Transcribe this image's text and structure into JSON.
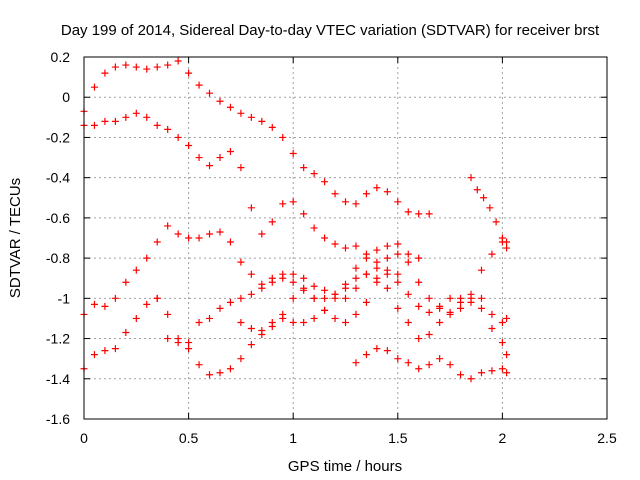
{
  "chart_data": {
    "type": "scatter",
    "title": "Day 199 of 2014, Sidereal Day-to-day VTEC variation (SDTVAR) for receiver brst",
    "xlabel": "GPS time / hours",
    "ylabel": "SDTVAR / TECUs",
    "xlim": [
      0,
      2.5
    ],
    "ylim": [
      -1.6,
      0.2
    ],
    "xticks": [
      0,
      0.5,
      1,
      1.5,
      2,
      2.5
    ],
    "xtick_labels": [
      "0",
      "0.5",
      "1",
      "1.5",
      "2",
      "2.5"
    ],
    "yticks": [
      -1.6,
      -1.4,
      -1.2,
      -1,
      -0.8,
      -0.6,
      -0.4,
      -0.2,
      0,
      0.2
    ],
    "ytick_labels": [
      "-1.6",
      "-1.4",
      "-1.2",
      "-1",
      "-0.8",
      "-0.6",
      "-0.4",
      "-0.2",
      "0",
      "0.2"
    ],
    "grid": true,
    "marker": "+",
    "color": "#ff0000",
    "series": [
      {
        "x": [
          0.0,
          0.05,
          0.1,
          0.15,
          0.2,
          0.25,
          0.3,
          0.35,
          0.4,
          0.45,
          0.5,
          0.55,
          0.6,
          0.65,
          0.7,
          0.75,
          0.8,
          0.85,
          0.9,
          0.95,
          1.0,
          1.05,
          1.1,
          1.15,
          1.2,
          1.25,
          1.3,
          1.35,
          1.4,
          1.45,
          1.5,
          1.55,
          1.6,
          1.65
        ],
        "y": [
          -0.07,
          0.05,
          0.12,
          0.15,
          0.16,
          0.15,
          0.14,
          0.15,
          0.16,
          0.18,
          0.12,
          0.06,
          0.02,
          -0.02,
          -0.05,
          -0.08,
          -0.1,
          -0.12,
          -0.15,
          -0.2,
          -0.28,
          -0.35,
          -0.38,
          -0.42,
          -0.48,
          -0.52,
          -0.53,
          -0.48,
          -0.45,
          -0.47,
          -0.52,
          -0.57,
          -0.58,
          -0.58
        ]
      },
      {
        "x": [
          0.0,
          0.05,
          0.1,
          0.15,
          0.2,
          0.25,
          0.3,
          0.35,
          0.4,
          0.45,
          0.5,
          0.55,
          0.6,
          0.65,
          0.7,
          0.75,
          0.8,
          0.85,
          0.9,
          0.95,
          1.0,
          1.05,
          1.1,
          1.15,
          1.2,
          1.25,
          1.3,
          1.35,
          1.4,
          1.45,
          1.5,
          1.55,
          1.6
        ],
        "y": [
          -0.14,
          -0.14,
          -0.12,
          -0.12,
          -0.1,
          -0.08,
          -0.1,
          -0.14,
          -0.16,
          -0.2,
          -0.24,
          -0.3,
          -0.34,
          -0.3,
          -0.27,
          -0.35,
          -0.55,
          -0.68,
          -0.62,
          -0.53,
          -0.52,
          -0.58,
          -0.65,
          -0.7,
          -0.73,
          -0.75,
          -0.74,
          -0.78,
          -0.76,
          -0.74,
          -0.73,
          -0.78,
          -0.8
        ]
      },
      {
        "x": [
          0.0,
          0.05,
          0.1,
          0.15,
          0.2,
          0.25,
          0.3,
          0.35,
          0.4,
          0.45,
          0.5,
          0.55,
          0.6,
          0.65,
          0.7,
          0.75,
          0.8,
          0.85,
          0.9,
          0.95,
          1.0,
          1.05,
          1.1,
          1.15,
          1.2,
          1.25,
          1.3,
          1.35,
          1.4,
          1.45,
          1.5,
          1.55,
          1.6,
          1.65,
          1.7,
          1.75,
          1.8,
          1.85,
          1.9,
          1.95,
          2.0,
          2.02
        ],
        "y": [
          -1.08,
          -1.03,
          -1.04,
          -1.0,
          -0.92,
          -0.86,
          -0.8,
          -0.72,
          -0.64,
          -0.68,
          -0.7,
          -0.7,
          -0.68,
          -0.67,
          -0.72,
          -0.82,
          -0.88,
          -0.93,
          -0.92,
          -0.88,
          -0.88,
          -0.9,
          -0.94,
          -0.96,
          -0.98,
          -1.0,
          -0.95,
          -0.88,
          -0.85,
          -0.8,
          -0.78,
          -0.82,
          -0.92,
          -1.0,
          -1.05,
          -1.07,
          -1.02,
          -0.98,
          -0.86,
          -0.78,
          -0.72,
          -0.72
        ]
      },
      {
        "x": [
          0.0,
          0.05,
          0.1,
          0.15,
          0.2,
          0.25,
          0.3,
          0.35,
          0.4,
          0.45,
          0.5,
          0.55,
          0.6,
          0.65,
          0.7,
          0.75,
          0.8,
          0.85,
          0.9,
          0.95,
          1.0,
          1.05,
          1.1,
          1.15,
          1.2,
          1.25,
          1.3,
          1.35,
          1.4,
          1.45,
          1.5
        ],
        "y": [
          -1.35,
          -1.28,
          -1.26,
          -1.25,
          -1.17,
          -1.1,
          -1.03,
          -1.0,
          -1.08,
          -1.2,
          -1.25,
          -1.33,
          -1.38,
          -1.37,
          -1.35,
          -1.3,
          -1.23,
          -1.16,
          -1.12,
          -1.1,
          -1.12,
          -1.12,
          -1.1,
          -1.06,
          -1.0,
          -0.93,
          -0.85,
          -0.8,
          -0.82,
          -0.86,
          -0.88
        ]
      },
      {
        "x": [
          0.75,
          0.8,
          0.85,
          0.9,
          0.95,
          1.0,
          1.05,
          1.1,
          1.15,
          1.2,
          1.25,
          1.3,
          1.35,
          1.4,
          1.45,
          1.5,
          1.55,
          1.6,
          1.65,
          1.7,
          1.75,
          1.8,
          1.85,
          1.9,
          1.95,
          2.0,
          2.02
        ],
        "y": [
          -1.12,
          -1.15,
          -1.18,
          -1.14,
          -1.08,
          -1.0,
          -0.96,
          -1.0,
          -1.06,
          -1.1,
          -1.12,
          -1.08,
          -1.02,
          -0.92,
          -0.88,
          -0.92,
          -0.98,
          -1.04,
          -1.07,
          -1.04,
          -1.0,
          -1.0,
          -1.02,
          -1.05,
          -1.08,
          -1.12,
          -1.1
        ]
      },
      {
        "x": [
          0.35,
          0.4,
          0.45,
          0.5,
          0.55,
          0.6,
          0.65,
          0.7,
          0.75,
          0.8,
          0.85,
          0.9,
          0.95,
          1.0,
          1.05,
          1.1,
          1.15,
          1.2,
          1.25,
          1.3,
          1.35,
          1.4,
          1.45,
          1.5,
          1.55,
          1.6,
          1.65,
          1.7,
          1.75,
          1.8,
          1.85,
          1.9,
          1.95,
          2.0,
          2.02
        ],
        "y": [
          -1.0,
          -1.2,
          -1.22,
          -1.22,
          -1.12,
          -1.1,
          -1.05,
          -1.02,
          -1.0,
          -0.98,
          -0.95,
          -0.9,
          -0.9,
          -0.92,
          -0.95,
          -1.0,
          -1.0,
          -0.98,
          -0.95,
          -0.9,
          -0.88,
          -0.9,
          -0.95,
          -1.05,
          -1.12,
          -1.2,
          -1.18,
          -1.12,
          -1.08,
          -1.05,
          -1.0,
          -1.0,
          -1.15,
          -1.22,
          -1.28
        ]
      },
      {
        "x": [
          1.3,
          1.35,
          1.4,
          1.45,
          1.5,
          1.55,
          1.6,
          1.65,
          1.7,
          1.75,
          1.8,
          1.85,
          1.9,
          1.95,
          2.0,
          2.02
        ],
        "y": [
          -1.32,
          -1.28,
          -1.25,
          -1.26,
          -1.3,
          -1.32,
          -1.35,
          -1.33,
          -1.3,
          -1.33,
          -1.38,
          -1.4,
          -1.37,
          -1.36,
          -1.35,
          -1.37
        ]
      },
      {
        "x": [
          1.85,
          1.88,
          1.91,
          1.94,
          1.97,
          2.0,
          2.02
        ],
        "y": [
          -0.4,
          -0.46,
          -0.5,
          -0.55,
          -0.62,
          -0.7,
          -0.75
        ]
      }
    ]
  }
}
